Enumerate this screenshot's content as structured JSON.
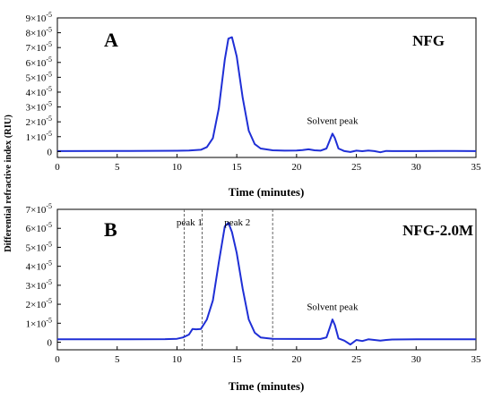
{
  "figure": {
    "ylabel": "Differential refractive index (RIU)",
    "xlabel": "Time (minutes)",
    "line_color": "#1f2fd6"
  },
  "chart_data": [
    {
      "type": "line",
      "panel": "A",
      "name": "NFG",
      "xlabel": "Time (minutes)",
      "ylabel": "Differential refractive index (RIU)",
      "xlim": [
        0,
        35
      ],
      "ylim": [
        -4e-06,
        9e-05
      ],
      "x_ticks": [
        0,
        5,
        10,
        15,
        20,
        25,
        30,
        35
      ],
      "x_tick_labels": [
        "0",
        "5",
        "10",
        "15",
        "20",
        "25",
        "30",
        "35"
      ],
      "y_ticks": [
        0,
        1e-05,
        2e-05,
        3e-05,
        4e-05,
        5e-05,
        6e-05,
        7e-05,
        8e-05,
        9e-05
      ],
      "y_tick_labels": [
        {
          "base": "0",
          "exp": ""
        },
        {
          "base": "1×10",
          "exp": "-5"
        },
        {
          "base": "2×10",
          "exp": "-5"
        },
        {
          "base": "3×10",
          "exp": "-5"
        },
        {
          "base": "4×10",
          "exp": "-5"
        },
        {
          "base": "5×10",
          "exp": "-5"
        },
        {
          "base": "6×10",
          "exp": "-5"
        },
        {
          "base": "7×10",
          "exp": "-5"
        },
        {
          "base": "8×10",
          "exp": "-5"
        },
        {
          "base": "9×10",
          "exp": "-5"
        }
      ],
      "x": [
        0,
        6,
        10,
        11,
        12,
        12.5,
        13,
        13.5,
        14,
        14.3,
        14.6,
        15,
        15.5,
        16,
        16.5,
        17,
        18,
        19,
        20,
        20.5,
        21,
        21.5,
        22,
        22.5,
        22.8,
        23,
        23.2,
        23.5,
        24,
        24.5,
        25,
        25.5,
        26,
        26.5,
        27,
        27.5,
        28,
        30,
        32,
        35
      ],
      "y": [
        3e-07,
        4e-07,
        5e-07,
        7e-07,
        1.2e-06,
        3e-06,
        9e-06,
        2.9e-05,
        6.2e-05,
        7.6e-05,
        7.7e-05,
        6.4e-05,
        3.6e-05,
        1.4e-05,
        5e-06,
        2e-06,
        8e-07,
        6e-07,
        7e-07,
        1e-06,
        1.5e-06,
        8e-07,
        6e-07,
        2e-06,
        8e-06,
        1.2e-05,
        9e-06,
        2e-06,
        3e-07,
        -3e-07,
        6e-07,
        2e-07,
        7e-07,
        3e-07,
        -5e-07,
        4e-07,
        3e-07,
        3e-07,
        4e-07,
        3e-07
      ],
      "annotations": [
        {
          "id": "solvent",
          "text": "Solvent peak",
          "x": 23,
          "y": 1.85e-05
        }
      ]
    },
    {
      "type": "line",
      "panel": "B",
      "name": "NFG-2.0M",
      "xlabel": "Time (minutes)",
      "ylabel": "Differential refractive index (RIU)",
      "xlim": [
        0,
        35
      ],
      "ylim": [
        -4e-06,
        7e-05
      ],
      "x_ticks": [
        0,
        5,
        10,
        15,
        20,
        25,
        30,
        35
      ],
      "x_tick_labels": [
        "0",
        "5",
        "10",
        "15",
        "20",
        "25",
        "30",
        "35"
      ],
      "y_ticks": [
        0,
        1e-05,
        2e-05,
        3e-05,
        4e-05,
        5e-05,
        6e-05,
        7e-05
      ],
      "y_tick_labels": [
        {
          "base": "0",
          "exp": ""
        },
        {
          "base": "1×10",
          "exp": "-5"
        },
        {
          "base": "2×10",
          "exp": "-5"
        },
        {
          "base": "3×10",
          "exp": "-5"
        },
        {
          "base": "4×10",
          "exp": "-5"
        },
        {
          "base": "5×10",
          "exp": "-5"
        },
        {
          "base": "6×10",
          "exp": "-5"
        },
        {
          "base": "7×10",
          "exp": "-5"
        }
      ],
      "x": [
        0,
        6,
        9,
        10,
        10.5,
        11,
        11.3,
        11.6,
        12,
        12.5,
        13,
        13.5,
        14,
        14.3,
        14.6,
        15,
        15.5,
        16,
        16.5,
        17,
        18,
        20,
        22,
        22.5,
        22.8,
        23,
        23.2,
        23.5,
        24,
        24.5,
        25,
        25.5,
        26,
        27,
        27.5,
        28,
        30,
        32,
        35
      ],
      "y": [
        1.5e-06,
        1.5e-06,
        1.6e-06,
        1.8e-06,
        2.5e-06,
        4e-06,
        7e-06,
        6.8e-06,
        7e-06,
        1.2e-05,
        2.2e-05,
        4.2e-05,
        6.1e-05,
        6.3e-05,
        5.8e-05,
        4.7e-05,
        2.8e-05,
        1.2e-05,
        5e-06,
        2.5e-06,
        1.8e-06,
        1.7e-06,
        1.7e-06,
        2.5e-06,
        8e-06,
        1.2e-05,
        9e-06,
        2e-06,
        8e-07,
        -1.2e-06,
        1.2e-06,
        6e-07,
        1.5e-06,
        8e-07,
        1.2e-06,
        1.4e-06,
        1.5e-06,
        1.5e-06,
        1.5e-06
      ],
      "vlines": [
        10.6,
        12.1,
        18
      ],
      "annotations": [
        {
          "id": "peak1",
          "text": "peak 1",
          "x": 11.05,
          "y": 6.15e-05
        },
        {
          "id": "peak2",
          "text": "peak 2",
          "x": 15.05,
          "y": 6.15e-05
        },
        {
          "id": "solvent",
          "text": "Solvent peak",
          "x": 23,
          "y": 1.7e-05
        }
      ]
    }
  ]
}
